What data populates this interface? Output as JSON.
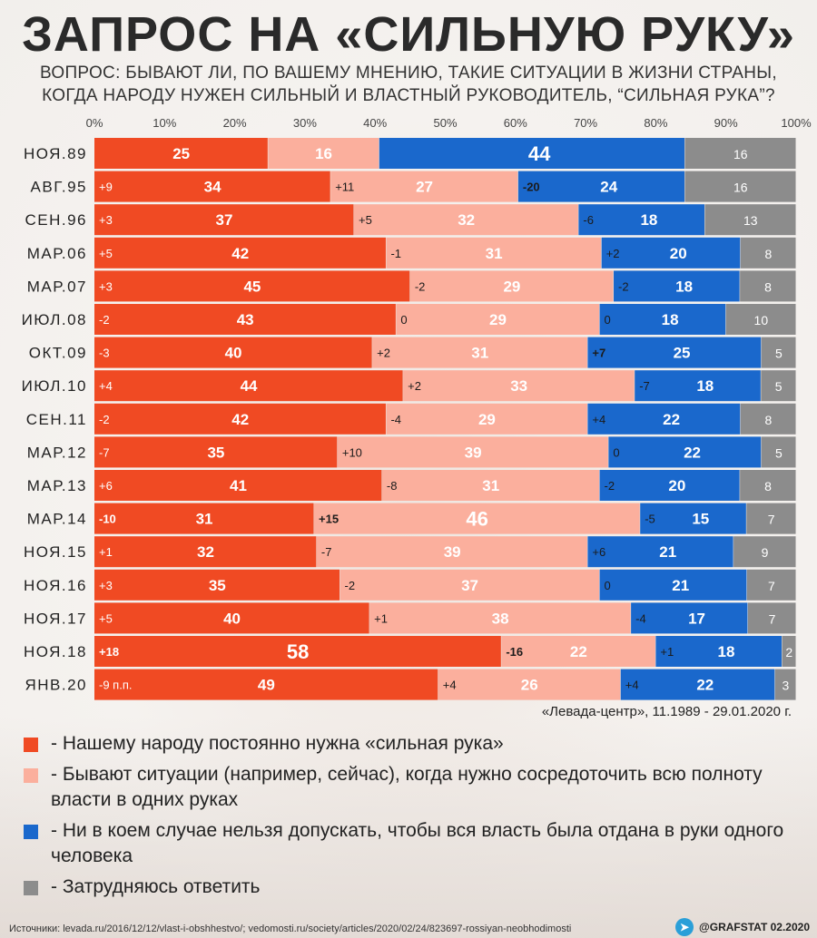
{
  "title": "ЗАПРОС НА «СИЛЬНУЮ РУКУ»",
  "subtitle_line1": "ВОПРОС: БЫВАЮТ ЛИ, ПО ВАШЕМУ МНЕНИЮ, ТАКИЕ СИТУАЦИИ В ЖИЗНИ СТРАНЫ,",
  "subtitle_line2": "КОГДА НАРОДУ НУЖЕН СИЛЬНЫЙ И ВЛАСТНЫЙ РУКОВОДИТЕЛЬ, “СИЛЬНАЯ РУКА”?",
  "source_note": "«Левада-центр», 11.1989 - 29.01.2020 г.",
  "legend": [
    {
      "label": "- Нашему народу постоянно нужна «сильная рука»",
      "color": "#f04a23"
    },
    {
      "label": "- Бывают ситуации (например, сейчас), когда нужно сосредоточить всю полноту власти в одних руках",
      "color": "#fbaf9d"
    },
    {
      "label": "- Ни в коем случае нельзя допускать, чтобы вся власть была отдана в руки одного человека",
      "color": "#1a68cc"
    },
    {
      "label": "- Затрудняюсь ответить",
      "color": "#8c8c8c"
    }
  ],
  "footer_sources": "Источники: levada.ru/2016/12/12/vlast-i-obshhestvo/; vedomosti.ru/society/articles/2020/02/24/823697-rossiyan-neobhodimosti",
  "brand": "@GRAFSTAT 02.2020",
  "telegram_icon": "telegram-icon",
  "chart_data": {
    "type": "bar",
    "orientation": "horizontal-stacked-100",
    "xlim": [
      0,
      100
    ],
    "x_ticks": [
      "0%",
      "10%",
      "20%",
      "30%",
      "40%",
      "50%",
      "60%",
      "70%",
      "80%",
      "90%",
      "100%"
    ],
    "categories": [
      "НОЯ.89",
      "АВГ.95",
      "СЕН.96",
      "МАР.06",
      "МАР.07",
      "ИЮЛ.08",
      "ОКТ.09",
      "ИЮЛ.10",
      "СЕН.11",
      "МАР.12",
      "МАР.13",
      "МАР.14",
      "НОЯ.15",
      "НОЯ.16",
      "НОЯ.17",
      "НОЯ.18",
      "ЯНВ.20"
    ],
    "series": [
      {
        "values": [
          25,
          34,
          37,
          42,
          45,
          43,
          40,
          44,
          42,
          35,
          41,
          31,
          32,
          35,
          40,
          58,
          49
        ],
        "changes": [
          "",
          "+9",
          "+3",
          "+5",
          "+3",
          "-2",
          "-3",
          "+4",
          "-2",
          "-7",
          "+6",
          "-10",
          "+1",
          "+3",
          "+5",
          "+18",
          "-9 п.п."
        ],
        "color": "#f04a23"
      },
      {
        "values": [
          16,
          27,
          32,
          31,
          29,
          29,
          31,
          33,
          29,
          39,
          31,
          46,
          39,
          37,
          38,
          22,
          26
        ],
        "changes": [
          "",
          "+11",
          "+5",
          "-1",
          "-2",
          "0",
          "+2",
          "+2",
          "-4",
          "+10",
          "-8",
          "+15",
          "-7",
          "-2",
          "+1",
          "-16",
          "+4"
        ],
        "color": "#fbaf9d"
      },
      {
        "values": [
          44,
          24,
          18,
          20,
          18,
          18,
          25,
          18,
          22,
          22,
          20,
          15,
          21,
          21,
          17,
          18,
          22
        ],
        "changes": [
          "",
          "-20",
          "-6",
          "+2",
          "-2",
          "0",
          "+7",
          "-7",
          "+4",
          "0",
          "-2",
          "-5",
          "+6",
          "0",
          "-4",
          "+1",
          "+4"
        ],
        "color": "#1a68cc"
      },
      {
        "values": [
          16,
          16,
          13,
          8,
          8,
          10,
          5,
          5,
          8,
          5,
          8,
          7,
          9,
          7,
          7,
          2,
          3
        ],
        "changes": [
          "",
          "",
          "",
          "",
          "",
          "",
          "",
          "",
          "",
          "",
          "",
          "",
          "",
          "",
          "",
          "",
          ""
        ],
        "color": "#8c8c8c"
      }
    ],
    "bold_changes": [
      "-20",
      "+7",
      "-10",
      "+15",
      "+18",
      "-16"
    ]
  }
}
